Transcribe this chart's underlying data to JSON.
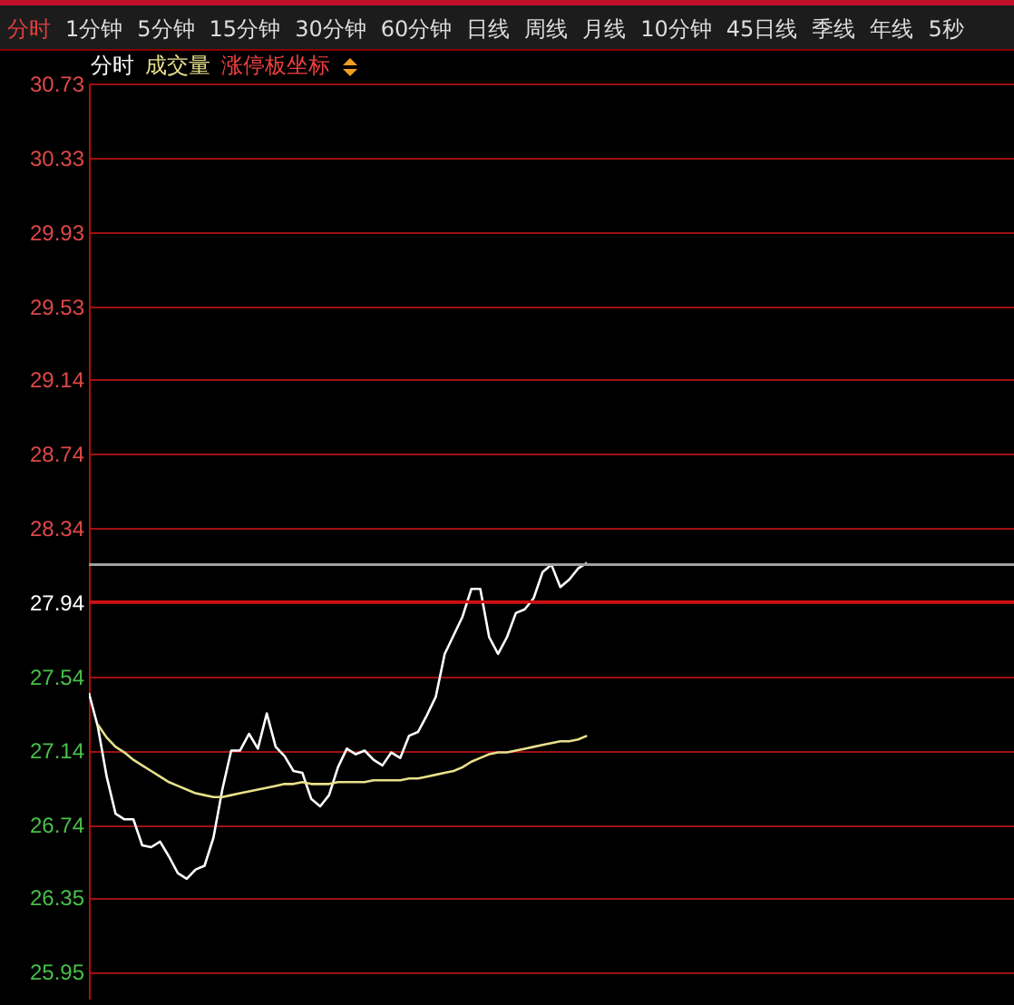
{
  "chart_data": {
    "type": "line",
    "annotations": [
      "分时",
      "1分钟",
      "5分钟",
      "15分钟",
      "30分钟",
      "60分钟",
      "日线",
      "周线",
      "月线",
      "10分钟",
      "45日线",
      "季线",
      "年线",
      "5秒",
      "分时",
      "成交量",
      "涨停板坐标"
    ],
    "categories": [
      null,
      null,
      null,
      null,
      null,
      null,
      null,
      null,
      null,
      null,
      null,
      null,
      null,
      null,
      null,
      null,
      null,
      null,
      null,
      null,
      null,
      null,
      null,
      null,
      null,
      null,
      null,
      null,
      null,
      null,
      null,
      null,
      null,
      null,
      null,
      null,
      null,
      null,
      null,
      null,
      null,
      null,
      null,
      null,
      null,
      null,
      null,
      null,
      null,
      null,
      null,
      null,
      null,
      null,
      null,
      null,
      null,
      null,
      null,
      null,
      null,
      null,
      null,
      null,
      null,
      null,
      null,
      null,
      null,
      null,
      null,
      null,
      null,
      null,
      null,
      null,
      null,
      null,
      null,
      null,
      null,
      null,
      null,
      null,
      null,
      null,
      null,
      null,
      null,
      null,
      null,
      null,
      null,
      null,
      null,
      null,
      null,
      null,
      null,
      null,
      null,
      null,
      null,
      null,
      null
    ],
    "series": [
      {
        "color": "#ffffff",
        "values": [
          27.45,
          27.27,
          27.0,
          26.8,
          26.77,
          26.77,
          26.63,
          26.62,
          26.65,
          26.57,
          26.48,
          26.45,
          26.5,
          26.52,
          26.67,
          26.93,
          27.14,
          27.14,
          27.23,
          27.15,
          27.34,
          27.16,
          27.11,
          27.03,
          27.02,
          26.88,
          26.84,
          26.9,
          27.05,
          27.15,
          27.12,
          27.14,
          27.09,
          27.06,
          27.13,
          27.1,
          27.22,
          27.24,
          27.33,
          27.43,
          27.66,
          27.76,
          27.86,
          28.01,
          28.01,
          27.75,
          27.66,
          27.75,
          27.88,
          27.9,
          27.96,
          28.1,
          28.14,
          28.02,
          28.06,
          28.12,
          28.15,
          null,
          null,
          null,
          null,
          null,
          null,
          null,
          null,
          null,
          null,
          null,
          null,
          null,
          null,
          null,
          null,
          null,
          null,
          null,
          null,
          null,
          null,
          null,
          null,
          null,
          null,
          null,
          null,
          null,
          null,
          null,
          null,
          null,
          null,
          null,
          null,
          null,
          null,
          null,
          null,
          null,
          null,
          null,
          null,
          null,
          null,
          null,
          null
        ]
      },
      {
        "color": "#e8e08a",
        "values": [
          null,
          27.28,
          27.21,
          27.16,
          27.13,
          27.09,
          27.06,
          27.03,
          27.0,
          26.97,
          26.95,
          26.93,
          26.91,
          26.9,
          26.89,
          26.89,
          26.9,
          26.91,
          26.92,
          26.93,
          26.94,
          26.95,
          26.96,
          26.96,
          26.97,
          26.96,
          26.96,
          26.96,
          26.97,
          26.97,
          26.97,
          26.97,
          26.98,
          26.98,
          26.98,
          26.98,
          26.99,
          26.99,
          27.0,
          27.01,
          27.02,
          27.03,
          27.05,
          27.08,
          27.1,
          27.12,
          27.13,
          27.13,
          27.14,
          27.15,
          27.16,
          27.17,
          27.18,
          27.19,
          27.19,
          27.2,
          27.22,
          null,
          null,
          null,
          null,
          null,
          null,
          null,
          null,
          null,
          null,
          null,
          null,
          null,
          null,
          null,
          null,
          null,
          null,
          null,
          null,
          null,
          null,
          null,
          null,
          null,
          null,
          null,
          null,
          null,
          null,
          null,
          null,
          null,
          null,
          null,
          null,
          null,
          null,
          null,
          null,
          null,
          null,
          null,
          null,
          null,
          null,
          null,
          null
        ]
      }
    ],
    "ylim": [
      25.8,
      30.73
    ],
    "yticks": [
      25.95,
      26.35,
      26.74,
      27.14,
      27.54,
      27.94,
      28.34,
      28.74,
      29.14,
      29.53,
      29.93,
      30.33,
      30.73
    ],
    "grid": "y",
    "tick_labels": "y",
    "ref_lines": [
      {
        "axis": "y",
        "value": 27.94,
        "color": "#d01010"
      },
      {
        "axis": "y",
        "value": 28.14,
        "color": "#a0a0a0"
      }
    ]
  }
}
